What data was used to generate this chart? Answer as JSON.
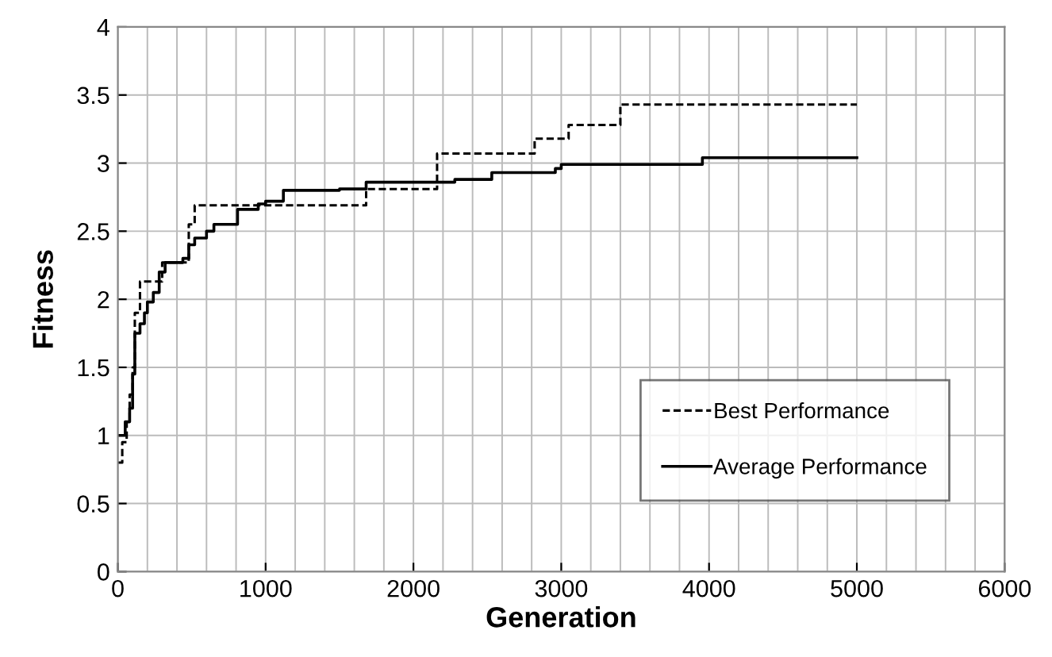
{
  "chart_data": {
    "type": "step",
    "xlabel": "Generation",
    "ylabel": "Fitness",
    "xlim": [
      0,
      6000
    ],
    "xticks": [
      0,
      1000,
      2000,
      3000,
      4000,
      5000,
      6000
    ],
    "ylim": [
      0,
      4
    ],
    "yticks": [
      0,
      0.5,
      1,
      1.5,
      2,
      2.5,
      3,
      3.5,
      4
    ],
    "grid": true,
    "legend": "bottom right",
    "series": [
      {
        "name": "Best Performance",
        "color": "#000000",
        "line_style": "dashed",
        "x": [
          0,
          30,
          60,
          80,
          100,
          115,
          150,
          300,
          480,
          520,
          1680,
          2160,
          2820,
          3050,
          3400,
          5000
        ],
        "values": [
          0.8,
          0.95,
          1.1,
          1.3,
          1.5,
          1.9,
          2.13,
          2.27,
          2.55,
          2.69,
          2.81,
          3.07,
          3.18,
          3.28,
          3.43,
          3.43
        ]
      },
      {
        "name": "Average Performance",
        "color": "#000000",
        "line_style": "solid",
        "x": [
          0,
          50,
          80,
          100,
          115,
          150,
          180,
          200,
          240,
          280,
          320,
          440,
          480,
          520,
          600,
          650,
          810,
          950,
          1000,
          1120,
          1500,
          1680,
          2280,
          2530,
          2960,
          3000,
          3955,
          5000
        ],
        "values": [
          1.0,
          1.1,
          1.2,
          1.45,
          1.75,
          1.82,
          1.9,
          1.98,
          2.05,
          2.2,
          2.27,
          2.3,
          2.4,
          2.45,
          2.5,
          2.55,
          2.66,
          2.7,
          2.72,
          2.8,
          2.81,
          2.86,
          2.88,
          2.93,
          2.96,
          2.99,
          3.04,
          3.04
        ]
      }
    ]
  }
}
